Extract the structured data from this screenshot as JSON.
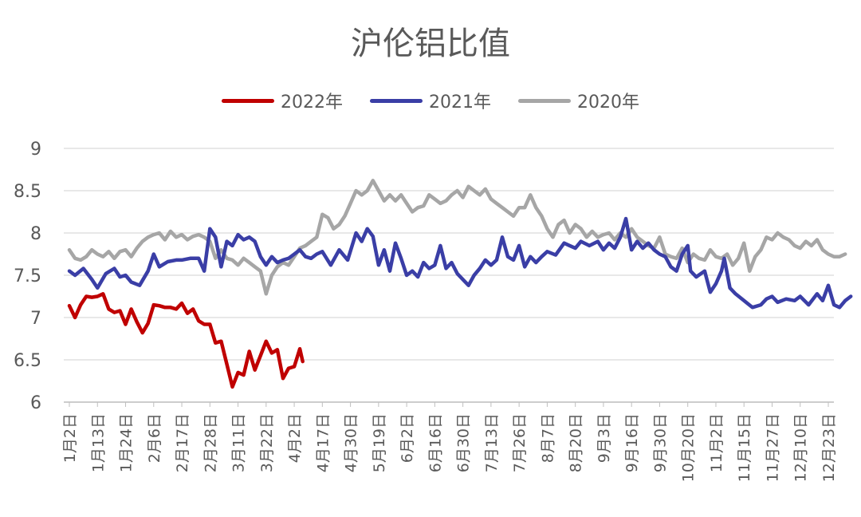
{
  "chart_data": {
    "type": "line",
    "title": "沪伦铝比值",
    "xlabel": "",
    "ylabel": "",
    "ylim": [
      6,
      9
    ],
    "yticks": [
      "9",
      "8.5",
      "8",
      "7.5",
      "7",
      "6.5",
      "6"
    ],
    "grid": true,
    "legend_position": "top",
    "x_tick_labels": [
      "1月2日",
      "1月13日",
      "1月24日",
      "2月6日",
      "2月17日",
      "2月28日",
      "3月11日",
      "3月22日",
      "4月2日",
      "4月17日",
      "4月30日",
      "5月19日",
      "6月2日",
      "6月16日",
      "6月30日",
      "7月13日",
      "7月26日",
      "8月7日",
      "8月20日",
      "9月3日",
      "9月16日",
      "9月30日",
      "10月20日",
      "11月2日",
      "11月15日",
      "11月27日",
      "12月10日",
      "12月23日"
    ],
    "series": [
      {
        "name": "2022年",
        "color": "#c00000",
        "points": [
          [
            0.0,
            7.14
          ],
          [
            0.2,
            7.0
          ],
          [
            0.4,
            7.15
          ],
          [
            0.6,
            7.25
          ],
          [
            0.8,
            7.24
          ],
          [
            1.0,
            7.25
          ],
          [
            1.2,
            7.28
          ],
          [
            1.4,
            7.1
          ],
          [
            1.6,
            7.06
          ],
          [
            1.8,
            7.08
          ],
          [
            2.0,
            6.92
          ],
          [
            2.2,
            7.1
          ],
          [
            2.4,
            6.95
          ],
          [
            2.6,
            6.82
          ],
          [
            2.8,
            6.93
          ],
          [
            3.0,
            7.15
          ],
          [
            3.2,
            7.14
          ],
          [
            3.4,
            7.12
          ],
          [
            3.6,
            7.12
          ],
          [
            3.8,
            7.1
          ],
          [
            4.0,
            7.17
          ],
          [
            4.2,
            7.05
          ],
          [
            4.4,
            7.1
          ],
          [
            4.6,
            6.96
          ],
          [
            4.8,
            6.92
          ],
          [
            5.0,
            6.92
          ],
          [
            5.2,
            6.7
          ],
          [
            5.4,
            6.72
          ],
          [
            5.6,
            6.45
          ],
          [
            5.8,
            6.18
          ],
          [
            6.0,
            6.35
          ],
          [
            6.2,
            6.32
          ],
          [
            6.4,
            6.6
          ],
          [
            6.6,
            6.38
          ],
          [
            6.8,
            6.55
          ],
          [
            7.0,
            6.72
          ],
          [
            7.2,
            6.58
          ],
          [
            7.4,
            6.62
          ],
          [
            7.6,
            6.28
          ],
          [
            7.8,
            6.4
          ],
          [
            8.0,
            6.42
          ],
          [
            8.2,
            6.63
          ],
          [
            8.3,
            6.48
          ]
        ]
      },
      {
        "name": "2021年",
        "color": "#3a3ea6",
        "points": [
          [
            0.0,
            7.55
          ],
          [
            0.2,
            7.5
          ],
          [
            0.5,
            7.58
          ],
          [
            0.8,
            7.45
          ],
          [
            1.0,
            7.35
          ],
          [
            1.3,
            7.52
          ],
          [
            1.6,
            7.58
          ],
          [
            1.8,
            7.48
          ],
          [
            2.0,
            7.5
          ],
          [
            2.2,
            7.42
          ],
          [
            2.5,
            7.38
          ],
          [
            2.8,
            7.55
          ],
          [
            3.0,
            7.75
          ],
          [
            3.2,
            7.6
          ],
          [
            3.5,
            7.66
          ],
          [
            3.8,
            7.68
          ],
          [
            4.0,
            7.68
          ],
          [
            4.3,
            7.7
          ],
          [
            4.6,
            7.7
          ],
          [
            4.8,
            7.55
          ],
          [
            5.0,
            8.05
          ],
          [
            5.2,
            7.95
          ],
          [
            5.4,
            7.6
          ],
          [
            5.6,
            7.9
          ],
          [
            5.8,
            7.85
          ],
          [
            6.0,
            7.98
          ],
          [
            6.2,
            7.92
          ],
          [
            6.4,
            7.95
          ],
          [
            6.6,
            7.9
          ],
          [
            6.8,
            7.72
          ],
          [
            7.0,
            7.62
          ],
          [
            7.2,
            7.72
          ],
          [
            7.4,
            7.65
          ],
          [
            7.6,
            7.68
          ],
          [
            7.8,
            7.7
          ],
          [
            8.0,
            7.75
          ],
          [
            8.2,
            7.8
          ],
          [
            8.4,
            7.72
          ],
          [
            8.6,
            7.7
          ],
          [
            8.8,
            7.75
          ],
          [
            9.0,
            7.78
          ],
          [
            9.3,
            7.62
          ],
          [
            9.6,
            7.8
          ],
          [
            9.9,
            7.68
          ],
          [
            10.2,
            8.0
          ],
          [
            10.4,
            7.9
          ],
          [
            10.6,
            8.05
          ],
          [
            10.8,
            7.96
          ],
          [
            11.0,
            7.62
          ],
          [
            11.2,
            7.8
          ],
          [
            11.4,
            7.55
          ],
          [
            11.6,
            7.88
          ],
          [
            11.8,
            7.7
          ],
          [
            12.0,
            7.5
          ],
          [
            12.2,
            7.55
          ],
          [
            12.4,
            7.48
          ],
          [
            12.6,
            7.65
          ],
          [
            12.8,
            7.58
          ],
          [
            13.0,
            7.62
          ],
          [
            13.2,
            7.85
          ],
          [
            13.4,
            7.58
          ],
          [
            13.6,
            7.65
          ],
          [
            13.8,
            7.52
          ],
          [
            14.0,
            7.45
          ],
          [
            14.2,
            7.38
          ],
          [
            14.4,
            7.5
          ],
          [
            14.6,
            7.58
          ],
          [
            14.8,
            7.68
          ],
          [
            15.0,
            7.62
          ],
          [
            15.2,
            7.68
          ],
          [
            15.4,
            7.95
          ],
          [
            15.6,
            7.72
          ],
          [
            15.8,
            7.68
          ],
          [
            16.0,
            7.85
          ],
          [
            16.2,
            7.6
          ],
          [
            16.4,
            7.72
          ],
          [
            16.6,
            7.65
          ],
          [
            16.8,
            7.72
          ],
          [
            17.0,
            7.78
          ],
          [
            17.3,
            7.74
          ],
          [
            17.6,
            7.88
          ],
          [
            17.8,
            7.85
          ],
          [
            18.0,
            7.82
          ],
          [
            18.2,
            7.9
          ],
          [
            18.5,
            7.85
          ],
          [
            18.8,
            7.9
          ],
          [
            19.0,
            7.8
          ],
          [
            19.2,
            7.88
          ],
          [
            19.4,
            7.82
          ],
          [
            19.6,
            7.95
          ],
          [
            19.8,
            8.17
          ],
          [
            20.0,
            7.8
          ],
          [
            20.2,
            7.9
          ],
          [
            20.4,
            7.82
          ],
          [
            20.6,
            7.88
          ],
          [
            20.8,
            7.8
          ],
          [
            21.0,
            7.75
          ],
          [
            21.2,
            7.72
          ],
          [
            21.4,
            7.6
          ],
          [
            21.6,
            7.55
          ],
          [
            21.8,
            7.75
          ],
          [
            22.0,
            7.85
          ],
          [
            22.1,
            7.55
          ],
          [
            22.3,
            7.48
          ],
          [
            22.6,
            7.55
          ],
          [
            22.8,
            7.3
          ],
          [
            23.0,
            7.4
          ],
          [
            23.2,
            7.55
          ],
          [
            23.3,
            7.7
          ],
          [
            23.5,
            7.35
          ],
          [
            23.7,
            7.28
          ],
          [
            24.0,
            7.2
          ],
          [
            24.3,
            7.12
          ],
          [
            24.6,
            7.15
          ],
          [
            24.8,
            7.22
          ],
          [
            25.0,
            7.25
          ],
          [
            25.2,
            7.18
          ],
          [
            25.5,
            7.22
          ],
          [
            25.8,
            7.2
          ],
          [
            26.0,
            7.25
          ],
          [
            26.3,
            7.15
          ],
          [
            26.6,
            7.28
          ],
          [
            26.8,
            7.2
          ],
          [
            27.0,
            7.38
          ],
          [
            27.2,
            7.15
          ],
          [
            27.4,
            7.12
          ],
          [
            27.6,
            7.2
          ],
          [
            27.8,
            7.25
          ]
        ]
      },
      {
        "name": "2020年",
        "color": "#a6a6a6",
        "points": [
          [
            0.0,
            7.8
          ],
          [
            0.2,
            7.7
          ],
          [
            0.4,
            7.68
          ],
          [
            0.6,
            7.72
          ],
          [
            0.8,
            7.8
          ],
          [
            1.0,
            7.75
          ],
          [
            1.2,
            7.72
          ],
          [
            1.4,
            7.78
          ],
          [
            1.6,
            7.7
          ],
          [
            1.8,
            7.78
          ],
          [
            2.0,
            7.8
          ],
          [
            2.2,
            7.72
          ],
          [
            2.4,
            7.82
          ],
          [
            2.6,
            7.9
          ],
          [
            2.8,
            7.95
          ],
          [
            3.0,
            7.98
          ],
          [
            3.2,
            8.0
          ],
          [
            3.4,
            7.92
          ],
          [
            3.6,
            8.02
          ],
          [
            3.8,
            7.95
          ],
          [
            4.0,
            7.98
          ],
          [
            4.2,
            7.92
          ],
          [
            4.4,
            7.96
          ],
          [
            4.6,
            7.98
          ],
          [
            4.8,
            7.95
          ],
          [
            5.0,
            7.9
          ],
          [
            5.2,
            7.7
          ],
          [
            5.4,
            7.8
          ],
          [
            5.6,
            7.7
          ],
          [
            5.8,
            7.68
          ],
          [
            6.0,
            7.62
          ],
          [
            6.2,
            7.7
          ],
          [
            6.4,
            7.65
          ],
          [
            6.6,
            7.6
          ],
          [
            6.8,
            7.55
          ],
          [
            7.0,
            7.28
          ],
          [
            7.2,
            7.5
          ],
          [
            7.4,
            7.6
          ],
          [
            7.6,
            7.65
          ],
          [
            7.8,
            7.62
          ],
          [
            8.0,
            7.72
          ],
          [
            8.2,
            7.82
          ],
          [
            8.4,
            7.85
          ],
          [
            8.6,
            7.9
          ],
          [
            8.8,
            7.95
          ],
          [
            9.0,
            8.22
          ],
          [
            9.2,
            8.18
          ],
          [
            9.4,
            8.05
          ],
          [
            9.6,
            8.1
          ],
          [
            9.8,
            8.2
          ],
          [
            10.0,
            8.35
          ],
          [
            10.2,
            8.5
          ],
          [
            10.4,
            8.45
          ],
          [
            10.6,
            8.5
          ],
          [
            10.8,
            8.62
          ],
          [
            11.0,
            8.5
          ],
          [
            11.2,
            8.38
          ],
          [
            11.4,
            8.45
          ],
          [
            11.6,
            8.38
          ],
          [
            11.8,
            8.45
          ],
          [
            12.0,
            8.35
          ],
          [
            12.2,
            8.25
          ],
          [
            12.4,
            8.3
          ],
          [
            12.6,
            8.32
          ],
          [
            12.8,
            8.45
          ],
          [
            13.0,
            8.4
          ],
          [
            13.2,
            8.35
          ],
          [
            13.4,
            8.38
          ],
          [
            13.6,
            8.45
          ],
          [
            13.8,
            8.5
          ],
          [
            14.0,
            8.42
          ],
          [
            14.2,
            8.55
          ],
          [
            14.4,
            8.5
          ],
          [
            14.6,
            8.45
          ],
          [
            14.8,
            8.52
          ],
          [
            15.0,
            8.4
          ],
          [
            15.2,
            8.35
          ],
          [
            15.4,
            8.3
          ],
          [
            15.6,
            8.25
          ],
          [
            15.8,
            8.2
          ],
          [
            16.0,
            8.3
          ],
          [
            16.2,
            8.3
          ],
          [
            16.4,
            8.45
          ],
          [
            16.6,
            8.3
          ],
          [
            16.8,
            8.2
          ],
          [
            17.0,
            8.05
          ],
          [
            17.2,
            7.95
          ],
          [
            17.4,
            8.1
          ],
          [
            17.6,
            8.15
          ],
          [
            17.8,
            8.0
          ],
          [
            18.0,
            8.1
          ],
          [
            18.2,
            8.05
          ],
          [
            18.4,
            7.95
          ],
          [
            18.6,
            8.02
          ],
          [
            18.8,
            7.95
          ],
          [
            19.0,
            7.98
          ],
          [
            19.2,
            8.0
          ],
          [
            19.4,
            7.92
          ],
          [
            19.6,
            8.0
          ],
          [
            19.8,
            7.95
          ],
          [
            20.0,
            8.05
          ],
          [
            20.2,
            7.95
          ],
          [
            20.4,
            7.9
          ],
          [
            20.6,
            7.85
          ],
          [
            20.8,
            7.82
          ],
          [
            21.0,
            7.95
          ],
          [
            21.2,
            7.75
          ],
          [
            21.4,
            7.72
          ],
          [
            21.6,
            7.7
          ],
          [
            21.8,
            7.82
          ],
          [
            22.0,
            7.65
          ],
          [
            22.2,
            7.75
          ],
          [
            22.4,
            7.7
          ],
          [
            22.6,
            7.68
          ],
          [
            22.8,
            7.8
          ],
          [
            23.0,
            7.72
          ],
          [
            23.2,
            7.7
          ],
          [
            23.4,
            7.75
          ],
          [
            23.6,
            7.62
          ],
          [
            23.8,
            7.7
          ],
          [
            24.0,
            7.88
          ],
          [
            24.2,
            7.55
          ],
          [
            24.4,
            7.72
          ],
          [
            24.6,
            7.8
          ],
          [
            24.8,
            7.95
          ],
          [
            25.0,
            7.92
          ],
          [
            25.2,
            8.0
          ],
          [
            25.4,
            7.95
          ],
          [
            25.6,
            7.92
          ],
          [
            25.8,
            7.85
          ],
          [
            26.0,
            7.82
          ],
          [
            26.2,
            7.9
          ],
          [
            26.4,
            7.85
          ],
          [
            26.6,
            7.92
          ],
          [
            26.8,
            7.8
          ],
          [
            27.0,
            7.75
          ],
          [
            27.2,
            7.72
          ],
          [
            27.4,
            7.72
          ],
          [
            27.6,
            7.75
          ]
        ]
      }
    ]
  }
}
